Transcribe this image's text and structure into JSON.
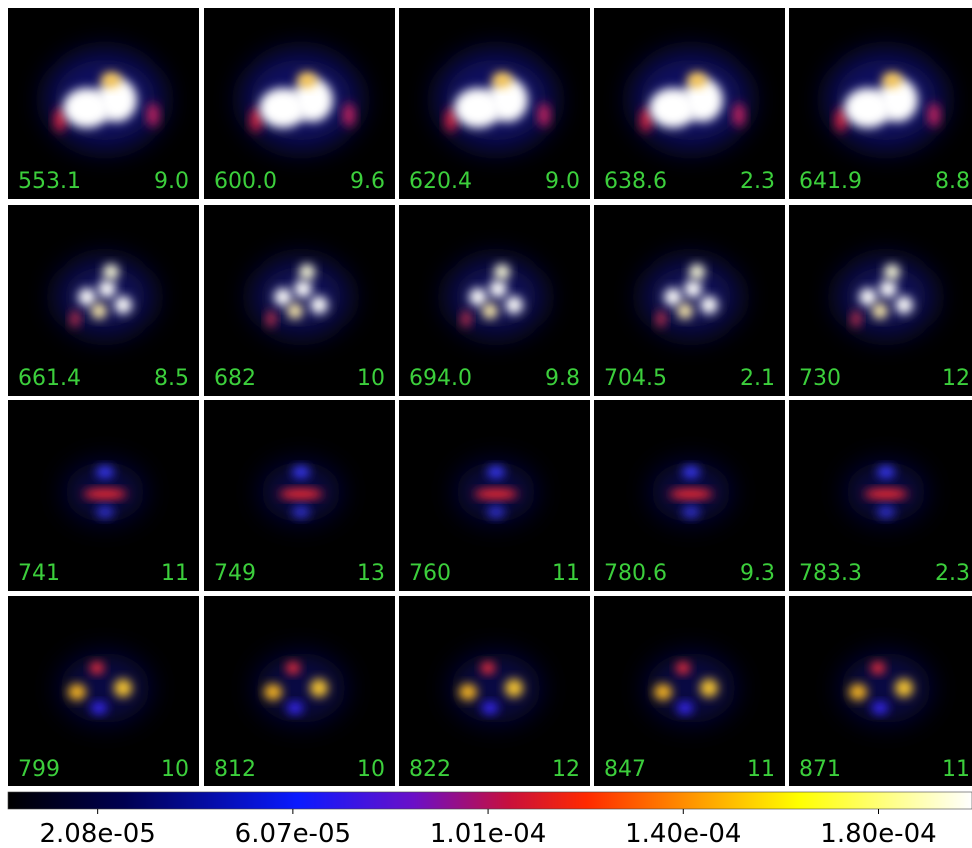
{
  "panels": [
    {
      "left": "553.1",
      "right": "9.0"
    },
    {
      "left": "600.0",
      "right": "9.6"
    },
    {
      "left": "620.4",
      "right": "9.0"
    },
    {
      "left": "638.6",
      "right": "2.3"
    },
    {
      "left": "641.9",
      "right": "8.8"
    },
    {
      "left": "661.4",
      "right": "8.5"
    },
    {
      "left": "682",
      "right": "10"
    },
    {
      "left": "694.0",
      "right": "9.8"
    },
    {
      "left": "704.5",
      "right": "2.1"
    },
    {
      "left": "730",
      "right": "12"
    },
    {
      "left": "741",
      "right": "11"
    },
    {
      "left": "749",
      "right": "13"
    },
    {
      "left": "760",
      "right": "11"
    },
    {
      "left": "780.6",
      "right": "9.3"
    },
    {
      "left": "783.3",
      "right": "2.3"
    },
    {
      "left": "799",
      "right": "10"
    },
    {
      "left": "812",
      "right": "10"
    },
    {
      "left": "822",
      "right": "12"
    },
    {
      "left": "847",
      "right": "11"
    },
    {
      "left": "871",
      "right": "11"
    }
  ],
  "colorbar": {
    "ticks": [
      "2.08e-05",
      "6.07e-05",
      "1.01e-04",
      "1.40e-04",
      "1.80e-04"
    ]
  }
}
